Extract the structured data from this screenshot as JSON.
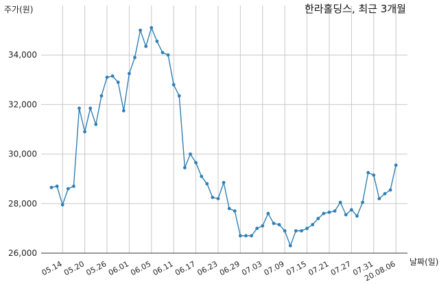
{
  "chart_data": {
    "type": "line",
    "title": "한라홀딩스, 최근 3개월",
    "ylabel": "주가(원)",
    "xlabel": "날짜(일)",
    "ylim": [
      26000,
      36000
    ],
    "yticks": [
      26000,
      28000,
      30000,
      32000,
      34000
    ],
    "ytick_labels": [
      "26,000",
      "28,000",
      "30,000",
      "32,000",
      "34,000"
    ],
    "grid": true,
    "xtick_labels": [
      "05.14",
      "05.20",
      "05.26",
      "06.01",
      "06.05",
      "06.11",
      "06.17",
      "06.23",
      "06.29",
      "07.03",
      "07.09",
      "07.15",
      "07.21",
      "07.27",
      "07.31",
      "20.08.06"
    ],
    "xtick_index": [
      2,
      6,
      10,
      14,
      18,
      22,
      26,
      30,
      34,
      38,
      42,
      46,
      50,
      54,
      58,
      62
    ],
    "series": [
      {
        "values": [
          28650,
          28700,
          27950,
          28600,
          28700,
          31850,
          30900,
          31850,
          31200,
          32350,
          33100,
          33150,
          32900,
          31750,
          33250,
          33900,
          35000,
          34350,
          35100,
          34550,
          34100,
          34000,
          32800,
          32350,
          29450,
          30000,
          29650,
          29100,
          28800,
          28250,
          28200,
          28850,
          27800,
          27700,
          26700,
          26700,
          26700,
          27000,
          27100,
          27600,
          27200,
          27150,
          26900,
          26300,
          26900,
          26900,
          27000,
          27150,
          27400,
          27600,
          27650,
          27700,
          28050,
          27550,
          27750,
          27500,
          28050,
          29250,
          29150,
          28200,
          28400,
          28550,
          29550
        ]
      }
    ]
  }
}
